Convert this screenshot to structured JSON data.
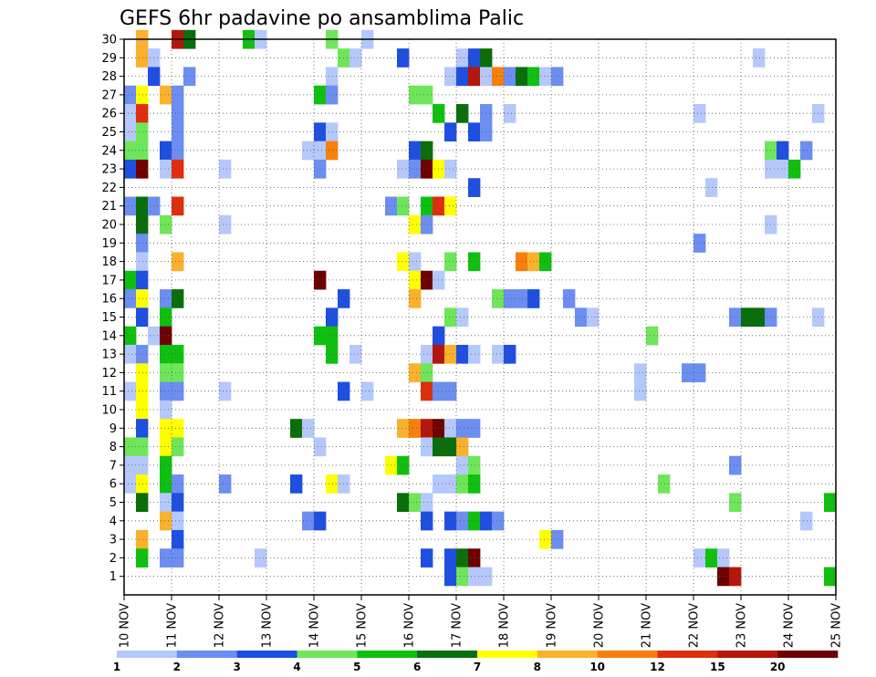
{
  "chart_data": {
    "type": "heatmap",
    "title": "GEFS 6hr padavine po ansamblima Palic",
    "xlabel": "",
    "ylabel": "",
    "x_tick_labels": [
      "10 NOV",
      "11 NOV",
      "12 NOV",
      "13 NOV",
      "14 NOV",
      "15 NOV",
      "16 NOV",
      "17 NOV",
      "18 NOV",
      "19 NOV",
      "20 NOV",
      "21 NOV",
      "22 NOV",
      "23 NOV",
      "24 NOV",
      "25 NOV"
    ],
    "y_tick_labels": [
      "1",
      "2",
      "3",
      "4",
      "5",
      "6",
      "7",
      "8",
      "9",
      "10",
      "11",
      "12",
      "13",
      "14",
      "15",
      "16",
      "17",
      "18",
      "19",
      "20",
      "21",
      "22",
      "23",
      "24",
      "25",
      "26",
      "27",
      "28",
      "29",
      "30"
    ],
    "ylim": [
      0,
      30
    ],
    "xlim_days": [
      10,
      25
    ],
    "steps_per_day": 4,
    "grid": "dotted",
    "colorbar": {
      "labels": [
        "1",
        "2",
        "3",
        "4",
        "5",
        "6",
        "7",
        "8",
        "10",
        "12",
        "15",
        "20"
      ],
      "colors": [
        "#b5c8fb",
        "#6b8ef0",
        "#1f4fe0",
        "#6fe65a",
        "#10c010",
        "#0a6e0a",
        "#ffff00",
        "#fcb12c",
        "#f77f0b",
        "#de2e0b",
        "#b5160b",
        "#6e0000"
      ]
    },
    "cells_format": "[member, time_step, color_index]",
    "cells": [
      [
        30,
        1,
        7
      ],
      [
        30,
        4,
        10
      ],
      [
        30,
        5,
        5
      ],
      [
        30,
        10,
        4
      ],
      [
        30,
        11,
        0
      ],
      [
        30,
        17,
        3
      ],
      [
        30,
        20,
        0
      ],
      [
        29,
        1,
        7
      ],
      [
        29,
        2,
        0
      ],
      [
        29,
        18,
        3
      ],
      [
        29,
        19,
        0
      ],
      [
        29,
        23,
        2
      ],
      [
        29,
        28,
        0
      ],
      [
        29,
        29,
        2
      ],
      [
        29,
        30,
        5
      ],
      [
        29,
        53,
        0
      ],
      [
        28,
        2,
        2
      ],
      [
        28,
        5,
        1
      ],
      [
        28,
        17,
        0
      ],
      [
        28,
        27,
        0
      ],
      [
        28,
        28,
        2
      ],
      [
        28,
        29,
        10
      ],
      [
        28,
        30,
        0
      ],
      [
        28,
        31,
        8
      ],
      [
        28,
        32,
        1
      ],
      [
        28,
        33,
        5
      ],
      [
        28,
        34,
        4
      ],
      [
        28,
        35,
        0
      ],
      [
        28,
        36,
        1
      ],
      [
        27,
        0,
        1
      ],
      [
        27,
        1,
        6
      ],
      [
        27,
        3,
        7
      ],
      [
        27,
        4,
        1
      ],
      [
        27,
        16,
        4
      ],
      [
        27,
        17,
        1
      ],
      [
        27,
        24,
        3
      ],
      [
        27,
        25,
        3
      ],
      [
        26,
        0,
        0
      ],
      [
        26,
        1,
        9
      ],
      [
        26,
        4,
        1
      ],
      [
        26,
        26,
        4
      ],
      [
        26,
        28,
        5
      ],
      [
        26,
        30,
        1
      ],
      [
        26,
        32,
        0
      ],
      [
        26,
        48,
        0
      ],
      [
        26,
        58,
        0
      ],
      [
        25,
        0,
        0
      ],
      [
        25,
        1,
        3
      ],
      [
        25,
        4,
        1
      ],
      [
        25,
        16,
        2
      ],
      [
        25,
        17,
        0
      ],
      [
        25,
        27,
        2
      ],
      [
        25,
        29,
        2
      ],
      [
        25,
        30,
        1
      ],
      [
        24,
        0,
        3
      ],
      [
        24,
        1,
        3
      ],
      [
        24,
        3,
        2
      ],
      [
        24,
        4,
        1
      ],
      [
        24,
        15,
        0
      ],
      [
        24,
        16,
        0
      ],
      [
        24,
        17,
        8
      ],
      [
        24,
        24,
        2
      ],
      [
        24,
        25,
        5
      ],
      [
        24,
        54,
        3
      ],
      [
        24,
        55,
        2
      ],
      [
        24,
        57,
        1
      ],
      [
        23,
        0,
        2
      ],
      [
        23,
        1,
        11
      ],
      [
        23,
        3,
        0
      ],
      [
        23,
        4,
        9
      ],
      [
        23,
        8,
        0
      ],
      [
        23,
        16,
        1
      ],
      [
        23,
        23,
        0
      ],
      [
        23,
        24,
        1
      ],
      [
        23,
        25,
        11
      ],
      [
        23,
        26,
        6
      ],
      [
        23,
        27,
        0
      ],
      [
        23,
        54,
        0
      ],
      [
        23,
        55,
        0
      ],
      [
        23,
        56,
        4
      ],
      [
        22,
        29,
        2
      ],
      [
        22,
        49,
        0
      ],
      [
        21,
        0,
        1
      ],
      [
        21,
        1,
        5
      ],
      [
        21,
        2,
        1
      ],
      [
        21,
        4,
        9
      ],
      [
        21,
        22,
        1
      ],
      [
        21,
        23,
        3
      ],
      [
        21,
        25,
        4
      ],
      [
        21,
        26,
        9
      ],
      [
        21,
        27,
        6
      ],
      [
        20,
        1,
        5
      ],
      [
        20,
        3,
        3
      ],
      [
        20,
        8,
        0
      ],
      [
        20,
        24,
        6
      ],
      [
        20,
        25,
        1
      ],
      [
        20,
        54,
        0
      ],
      [
        19,
        1,
        1
      ],
      [
        19,
        48,
        1
      ],
      [
        18,
        1,
        0
      ],
      [
        18,
        4,
        7
      ],
      [
        18,
        23,
        6
      ],
      [
        18,
        24,
        0
      ],
      [
        18,
        27,
        3
      ],
      [
        18,
        29,
        4
      ],
      [
        18,
        33,
        8
      ],
      [
        18,
        34,
        7
      ],
      [
        18,
        35,
        4
      ],
      [
        17,
        0,
        4
      ],
      [
        17,
        1,
        2
      ],
      [
        17,
        16,
        11
      ],
      [
        17,
        24,
        6
      ],
      [
        17,
        25,
        11
      ],
      [
        17,
        26,
        0
      ],
      [
        16,
        0,
        1
      ],
      [
        16,
        1,
        6
      ],
      [
        16,
        3,
        1
      ],
      [
        16,
        4,
        5
      ],
      [
        16,
        18,
        2
      ],
      [
        16,
        24,
        7
      ],
      [
        16,
        31,
        3
      ],
      [
        16,
        32,
        1
      ],
      [
        16,
        33,
        1
      ],
      [
        16,
        34,
        2
      ],
      [
        16,
        37,
        1
      ],
      [
        15,
        1,
        2
      ],
      [
        15,
        3,
        4
      ],
      [
        15,
        17,
        2
      ],
      [
        15,
        27,
        3
      ],
      [
        15,
        28,
        0
      ],
      [
        15,
        38,
        1
      ],
      [
        15,
        39,
        0
      ],
      [
        15,
        51,
        1
      ],
      [
        15,
        52,
        5
      ],
      [
        15,
        53,
        5
      ],
      [
        15,
        54,
        1
      ],
      [
        15,
        58,
        0
      ],
      [
        14,
        0,
        4
      ],
      [
        14,
        2,
        0
      ],
      [
        14,
        3,
        11
      ],
      [
        14,
        16,
        4
      ],
      [
        14,
        17,
        4
      ],
      [
        14,
        26,
        2
      ],
      [
        14,
        44,
        3
      ],
      [
        13,
        0,
        0
      ],
      [
        13,
        1,
        1
      ],
      [
        13,
        3,
        4
      ],
      [
        13,
        4,
        4
      ],
      [
        13,
        17,
        4
      ],
      [
        13,
        19,
        0
      ],
      [
        13,
        25,
        0
      ],
      [
        13,
        26,
        10
      ],
      [
        13,
        27,
        7
      ],
      [
        13,
        28,
        2
      ],
      [
        13,
        29,
        0
      ],
      [
        13,
        31,
        0
      ],
      [
        13,
        32,
        2
      ],
      [
        12,
        1,
        6
      ],
      [
        12,
        3,
        3
      ],
      [
        12,
        4,
        3
      ],
      [
        12,
        24,
        7
      ],
      [
        12,
        25,
        3
      ],
      [
        12,
        43,
        0
      ],
      [
        12,
        47,
        1
      ],
      [
        12,
        48,
        1
      ],
      [
        11,
        0,
        0
      ],
      [
        11,
        1,
        6
      ],
      [
        11,
        3,
        1
      ],
      [
        11,
        4,
        1
      ],
      [
        11,
        8,
        0
      ],
      [
        11,
        18,
        2
      ],
      [
        11,
        20,
        0
      ],
      [
        11,
        25,
        9
      ],
      [
        11,
        26,
        1
      ],
      [
        11,
        27,
        1
      ],
      [
        11,
        43,
        0
      ],
      [
        10,
        1,
        6
      ],
      [
        10,
        3,
        0
      ],
      [
        9,
        1,
        2
      ],
      [
        9,
        3,
        6
      ],
      [
        9,
        4,
        6
      ],
      [
        9,
        14,
        5
      ],
      [
        9,
        15,
        0
      ],
      [
        9,
        23,
        7
      ],
      [
        9,
        24,
        8
      ],
      [
        9,
        25,
        10
      ],
      [
        9,
        26,
        11
      ],
      [
        9,
        27,
        0
      ],
      [
        9,
        28,
        1
      ],
      [
        9,
        29,
        1
      ],
      [
        8,
        0,
        3
      ],
      [
        8,
        1,
        3
      ],
      [
        8,
        3,
        6
      ],
      [
        8,
        4,
        3
      ],
      [
        8,
        16,
        0
      ],
      [
        8,
        25,
        0
      ],
      [
        8,
        26,
        5
      ],
      [
        8,
        27,
        5
      ],
      [
        8,
        28,
        7
      ],
      [
        7,
        0,
        0
      ],
      [
        7,
        1,
        0
      ],
      [
        7,
        3,
        4
      ],
      [
        7,
        22,
        6
      ],
      [
        7,
        23,
        4
      ],
      [
        7,
        28,
        0
      ],
      [
        7,
        29,
        3
      ],
      [
        7,
        51,
        1
      ],
      [
        6,
        0,
        0
      ],
      [
        6,
        1,
        6
      ],
      [
        6,
        3,
        4
      ],
      [
        6,
        4,
        1
      ],
      [
        6,
        8,
        1
      ],
      [
        6,
        14,
        2
      ],
      [
        6,
        17,
        6
      ],
      [
        6,
        18,
        0
      ],
      [
        6,
        26,
        0
      ],
      [
        6,
        27,
        0
      ],
      [
        6,
        28,
        3
      ],
      [
        6,
        29,
        4
      ],
      [
        6,
        45,
        3
      ],
      [
        5,
        1,
        5
      ],
      [
        5,
        3,
        0
      ],
      [
        5,
        4,
        2
      ],
      [
        5,
        23,
        5
      ],
      [
        5,
        24,
        3
      ],
      [
        5,
        25,
        0
      ],
      [
        5,
        51,
        3
      ],
      [
        5,
        59,
        4
      ],
      [
        4,
        3,
        7
      ],
      [
        4,
        4,
        0
      ],
      [
        4,
        15,
        1
      ],
      [
        4,
        16,
        2
      ],
      [
        4,
        25,
        2
      ],
      [
        4,
        27,
        2
      ],
      [
        4,
        28,
        1
      ],
      [
        4,
        29,
        4
      ],
      [
        4,
        30,
        2
      ],
      [
        4,
        31,
        1
      ],
      [
        4,
        57,
        0
      ],
      [
        3,
        1,
        7
      ],
      [
        3,
        4,
        2
      ],
      [
        3,
        35,
        6
      ],
      [
        3,
        36,
        1
      ],
      [
        2,
        1,
        4
      ],
      [
        2,
        3,
        1
      ],
      [
        2,
        4,
        1
      ],
      [
        2,
        11,
        0
      ],
      [
        2,
        25,
        2
      ],
      [
        2,
        27,
        2
      ],
      [
        2,
        28,
        5
      ],
      [
        2,
        29,
        11
      ],
      [
        2,
        48,
        0
      ],
      [
        2,
        49,
        4
      ],
      [
        2,
        50,
        0
      ],
      [
        1,
        27,
        2
      ],
      [
        1,
        28,
        3
      ],
      [
        1,
        29,
        0
      ],
      [
        1,
        30,
        0
      ],
      [
        1,
        50,
        11
      ],
      [
        1,
        51,
        10
      ],
      [
        1,
        59,
        4
      ]
    ]
  }
}
